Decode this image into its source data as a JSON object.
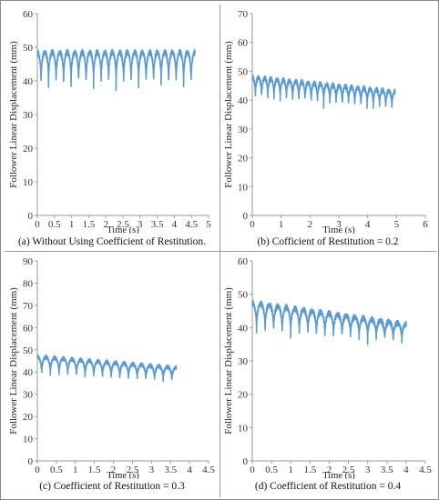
{
  "panels": [
    {
      "caption": "(a) Without Using Coefficient of Restitution.",
      "chart_data": {
        "type": "line",
        "xlabel": "Time (s)",
        "ylabel": "Follower Linear Displacement (mm)",
        "xlim": [
          0,
          5
        ],
        "ylim": [
          0,
          60
        ],
        "xticks": [
          "0",
          "0.5",
          "1",
          "1.5",
          "2",
          "2.5",
          "3",
          "3.5",
          "4",
          "4.5",
          "5"
        ],
        "yticks": [
          "0",
          "10",
          "20",
          "30",
          "40",
          "50",
          "60"
        ],
        "series": [
          {
            "color": "#5b9bd5",
            "x_end": 4.6,
            "cycles": 21,
            "upper": [
              48.5,
              48.5
            ],
            "lower": [
              38,
              38
            ],
            "values": [
              [
                0,
                46
              ],
              [
                0.1,
                48.5
              ],
              [
                0.2,
                38
              ],
              [
                0.5,
                48.5
              ],
              [
                1.0,
                38
              ],
              [
                1.5,
                48.5
              ],
              [
                2.0,
                38
              ],
              [
                2.5,
                48.5
              ],
              [
                3.0,
                38
              ],
              [
                3.5,
                48.5
              ],
              [
                4.0,
                38
              ],
              [
                4.5,
                48.5
              ],
              [
                4.6,
                39
              ]
            ]
          }
        ]
      }
    },
    {
      "caption": "(b) Cofficient of Restitution  = 0.2",
      "chart_data": {
        "type": "line",
        "xlabel": "Time (s)",
        "ylabel": "Follower Linear Displacement (mm)",
        "xlim": [
          0,
          6
        ],
        "ylim": [
          0,
          70
        ],
        "xticks": [
          "0",
          "1",
          "2",
          "3",
          "4",
          "5",
          "6"
        ],
        "yticks": [
          "0",
          "10",
          "20",
          "30",
          "40",
          "50",
          "60",
          "70"
        ],
        "series": [
          {
            "color": "#5b9bd5",
            "x_end": 4.95,
            "cycles": 23,
            "upper": [
              48,
              43
            ],
            "lower": [
              40,
              36
            ],
            "values": [
              [
                0,
                45
              ],
              [
                0.2,
                48
              ],
              [
                1.0,
                40
              ],
              [
                1.6,
                49
              ],
              [
                2.0,
                39
              ],
              [
                3.0,
                45
              ],
              [
                4.0,
                37
              ],
              [
                4.9,
                44
              ]
            ]
          }
        ]
      }
    },
    {
      "caption": "(c) Coefficient of Restitution  = 0.3",
      "chart_data": {
        "type": "line",
        "xlabel": "Time (s)",
        "ylabel": "Follower Linear Displacement (mm)",
        "xlim": [
          0,
          4.5
        ],
        "ylim": [
          0,
          90
        ],
        "xticks": [
          "0",
          "0.5",
          "1",
          "1.5",
          "2",
          "2.5",
          "3",
          "3.5",
          "4",
          "4.5"
        ],
        "yticks": [
          "0",
          "10",
          "20",
          "30",
          "40",
          "50",
          "60",
          "70",
          "80",
          "90"
        ],
        "series": [
          {
            "color": "#5b9bd5",
            "x_end": 3.65,
            "cycles": 16,
            "upper": [
              47,
              42
            ],
            "lower": [
              38,
              35
            ],
            "values": [
              [
                0,
                44
              ],
              [
                0.1,
                47
              ],
              [
                0.5,
                38
              ],
              [
                1.0,
                46
              ],
              [
                2.0,
                37
              ],
              [
                3.0,
                43
              ],
              [
                3.6,
                35
              ],
              [
                3.8,
                41
              ]
            ]
          }
        ]
      }
    },
    {
      "caption": "(d) Coefficient of Restitution  = 0.4",
      "chart_data": {
        "type": "line",
        "xlabel": "Time (s)",
        "ylabel": "Follower Linear Displacement (mm)",
        "xlim": [
          0,
          4.5
        ],
        "ylim": [
          0,
          60
        ],
        "xticks": [
          "0",
          "0.5",
          "1",
          "1.5",
          "2",
          "2.5",
          "3",
          "3.5",
          "4",
          "4.5"
        ],
        "yticks": [
          "0",
          "10",
          "20",
          "30",
          "40",
          "50",
          "60"
        ],
        "series": [
          {
            "color": "#5b9bd5",
            "x_end": 4.0,
            "cycles": 18,
            "upper": [
              47.5,
              41
            ],
            "lower": [
              38,
              35
            ],
            "values": [
              [
                0,
                44
              ],
              [
                0.1,
                47.5
              ],
              [
                0.5,
                38
              ],
              [
                1.0,
                46
              ],
              [
                2.0,
                36
              ],
              [
                3.0,
                42
              ],
              [
                4.0,
                35
              ],
              [
                4.0,
                40
              ]
            ]
          }
        ]
      }
    }
  ]
}
